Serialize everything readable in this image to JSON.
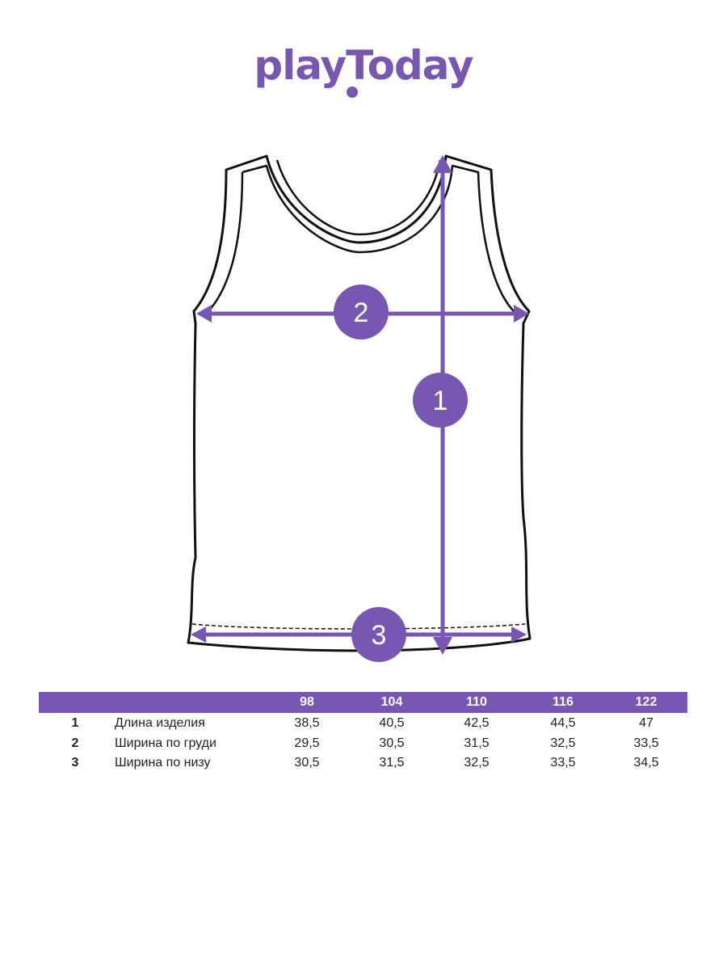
{
  "brand": {
    "name": "playToday",
    "color": "#7857b3"
  },
  "markers": [
    "1",
    "2",
    "3"
  ],
  "table": {
    "sizes": [
      "98",
      "104",
      "110",
      "116",
      "122"
    ],
    "rows": [
      {
        "num": "1",
        "label": "Длина изделия",
        "values": [
          "38,5",
          "40,5",
          "42,5",
          "44,5",
          "47"
        ]
      },
      {
        "num": "2",
        "label": "Ширина по груди",
        "values": [
          "29,5",
          "30,5",
          "31,5",
          "32,5",
          "33,5"
        ]
      },
      {
        "num": "3",
        "label": "Ширина по низу",
        "values": [
          "30,5",
          "31,5",
          "32,5",
          "33,5",
          "34,5"
        ]
      }
    ]
  }
}
